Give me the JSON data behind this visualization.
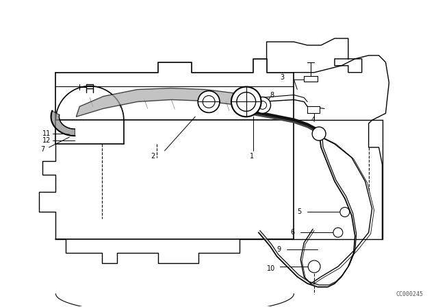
{
  "background_color": "#ffffff",
  "line_color": "#000000",
  "figure_width": 6.4,
  "figure_height": 4.48,
  "dpi": 100,
  "watermark": "CC000245"
}
